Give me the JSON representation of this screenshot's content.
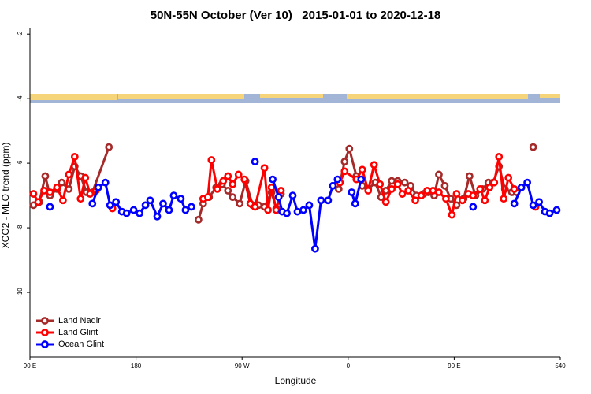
{
  "chart_data": {
    "type": "line",
    "title": "50N-55N October (Ver 10)   2015-01-01 to 2020-12-18",
    "x_label": "Longitude",
    "y_label": "XCO2 - MLO trend (ppm)",
    "xlim": [
      90,
      540
    ],
    "ylim": [
      -12,
      -1.8
    ],
    "xticks": [
      {
        "value": 90,
        "label": "90 E"
      },
      180,
      {
        "value": 270,
        "label": "90 W"
      },
      {
        "value": 360,
        "label": "0"
      },
      {
        "value": 450,
        "label": "90 E"
      },
      540
    ],
    "yticks": [
      -2,
      -4,
      -6,
      -8,
      -10
    ],
    "legend": "bottom-left",
    "series": [
      {
        "name": "Land Nadir",
        "color": "#a52a2a",
        "x": [
          93,
          98,
          103,
          107,
          113,
          117,
          123,
          128,
          133,
          138,
          143,
          157,
          null,
          233,
          237,
          242,
          248,
          253,
          258,
          262,
          268,
          273,
          279,
          284,
          289,
          295,
          299,
          303,
          null,
          352,
          357,
          361,
          367,
          372,
          377,
          383,
          388,
          392,
          397,
          402,
          408,
          413,
          418,
          424,
          428,
          433,
          437,
          442,
          447,
          452,
          458,
          463,
          468,
          474,
          479,
          483,
          488,
          493,
          499,
          503,
          null,
          517
        ],
        "values": [
          -7.3,
          -7.2,
          -6.4,
          -7.0,
          -6.8,
          -6.6,
          -6.8,
          -6.1,
          -6.4,
          -6.9,
          -6.9,
          -5.5,
          null,
          -7.75,
          -7.25,
          -7.05,
          -6.75,
          -6.65,
          -6.85,
          -7.05,
          -7.25,
          -6.55,
          -7.3,
          -7.3,
          -7.35,
          -6.9,
          -7.4,
          -6.95,
          null,
          -6.8,
          -5.95,
          -5.55,
          -6.4,
          -6.7,
          -6.8,
          -6.6,
          -7.05,
          -6.85,
          -6.55,
          -6.55,
          -6.6,
          -6.7,
          -7.0,
          -6.95,
          -6.9,
          -7.0,
          -6.35,
          -6.7,
          -7.1,
          -7.3,
          -7.1,
          -6.4,
          -7.0,
          -6.8,
          -6.6,
          -6.6,
          -6.1,
          -6.8,
          -6.9,
          -6.9,
          null,
          -5.5
        ]
      },
      {
        "name": "Land Glint",
        "color": "#ff0000",
        "x": [
          93,
          97,
          102,
          107,
          113,
          118,
          123,
          128,
          133,
          137,
          141,
          146,
          null,
          160,
          null,
          237,
          241,
          244,
          249,
          254,
          258,
          262,
          267,
          272,
          277,
          281,
          289,
          292,
          295,
          299,
          303,
          null,
          353,
          357,
          367,
          372,
          377,
          382,
          387,
          392,
          397,
          402,
          406,
          411,
          417,
          422,
          427,
          432,
          437,
          443,
          448,
          452,
          457,
          462,
          466,
          472,
          476,
          480,
          484,
          488,
          492,
          496,
          501,
          null,
          519
        ],
        "values": [
          -6.95,
          -7.2,
          -6.85,
          -6.9,
          -6.75,
          -7.15,
          -6.35,
          -5.8,
          -7.1,
          -6.45,
          -6.95,
          -6.85,
          null,
          -7.4,
          null,
          -7.1,
          -7.05,
          -5.9,
          -6.8,
          -6.55,
          -6.4,
          -6.65,
          -6.35,
          -6.5,
          -7.25,
          -7.35,
          -6.15,
          -7.45,
          -6.75,
          -7.45,
          -6.85,
          null,
          -6.6,
          -6.25,
          -6.5,
          -6.2,
          -6.85,
          -6.05,
          -6.65,
          -7.2,
          -6.8,
          -6.65,
          -6.95,
          -6.85,
          -7.15,
          -7.0,
          -6.85,
          -6.85,
          -6.9,
          -7.1,
          -7.6,
          -6.95,
          -7.15,
          -6.95,
          -7.0,
          -6.8,
          -7.15,
          -6.75,
          -6.6,
          -5.8,
          -7.1,
          -6.45,
          -6.8,
          null,
          -7.35
        ]
      },
      {
        "name": "Ocean Glint",
        "color": "#0000ff",
        "x": [
          107,
          null,
          143,
          148,
          154,
          158,
          163,
          168,
          172,
          178,
          183,
          188,
          192,
          198,
          203,
          208,
          212,
          218,
          222,
          227,
          null,
          281,
          null,
          296,
          301,
          304,
          308,
          313,
          317,
          322,
          327,
          332,
          337,
          343,
          347,
          351,
          null,
          363,
          366,
          371,
          null,
          466,
          null,
          501,
          507,
          512,
          517,
          522,
          527,
          531,
          537
        ],
        "values": [
          -7.35,
          null,
          -7.25,
          -6.75,
          -6.6,
          -7.3,
          -7.2,
          -7.5,
          -7.55,
          -7.45,
          -7.55,
          -7.3,
          -7.15,
          -7.65,
          -7.25,
          -7.45,
          -7.0,
          -7.1,
          -7.45,
          -7.35,
          null,
          -5.95,
          null,
          -6.5,
          -7.05,
          -7.5,
          -7.55,
          -7.0,
          -7.5,
          -7.45,
          -7.3,
          -8.65,
          -7.15,
          -7.15,
          -6.7,
          -6.5,
          null,
          -6.9,
          -7.25,
          -6.5,
          null,
          -7.35,
          null,
          -7.25,
          -6.75,
          -6.6,
          -7.3,
          -7.2,
          -7.5,
          -7.55,
          -7.45
        ]
      }
    ]
  }
}
